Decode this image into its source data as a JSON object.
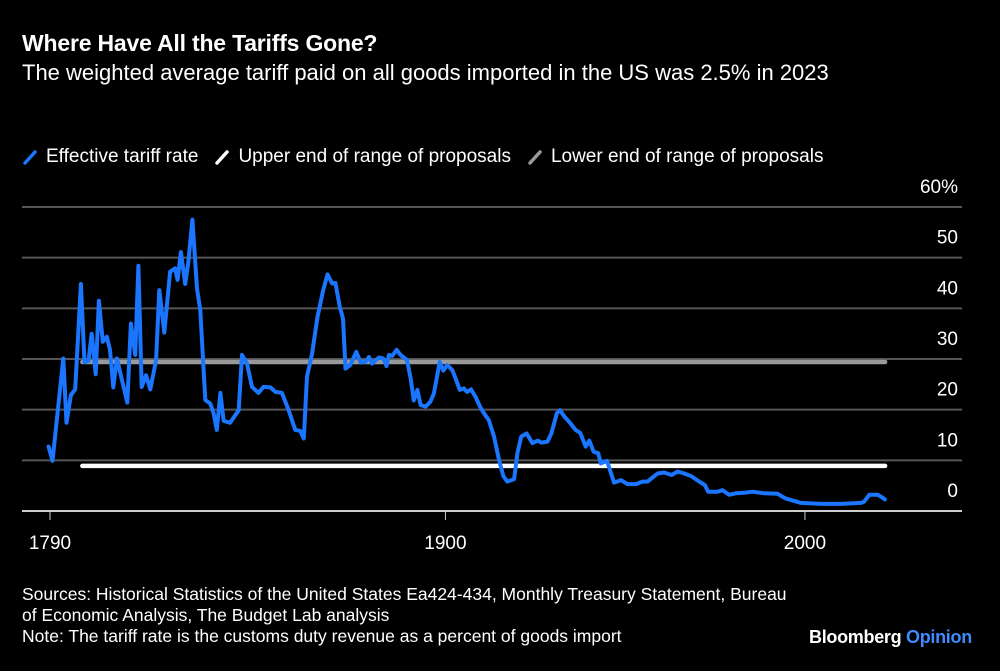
{
  "chart_data": {
    "type": "line",
    "title": "Where Have All the Tariffs Gone?",
    "subtitle": "The weighted average tariff paid on all goods imported in the US was 2.5% in 2023",
    "xlabel": "",
    "ylabel": "",
    "xlim": [
      1790,
      2024
    ],
    "ylim": [
      0,
      60
    ],
    "x_ticks": [
      1790,
      1900,
      2000
    ],
    "x_tick_labels": [
      "1790",
      "1900",
      "2000"
    ],
    "y_ticks": [
      0,
      10,
      20,
      30,
      40,
      50,
      60
    ],
    "y_tick_labels": [
      "0",
      "10",
      "20",
      "30",
      "40",
      "50",
      "60%"
    ],
    "grid": true,
    "legend_position": "top-left",
    "series": [
      {
        "name": "Effective tariff rate",
        "color": "#1a75ff",
        "x": [
          1789.6,
          1790.7,
          1793.7,
          1794.6,
          1795.8,
          1797,
          1798.6,
          1799.6,
          1800.7,
          1801.6,
          1802.7,
          1803.6,
          1804.7,
          1805.8,
          1806.7,
          1807.6,
          1808.6,
          1811.5,
          1812.5,
          1813.7,
          1814.6,
          1815.5,
          1816.7,
          1817.9,
          1819.5,
          1820.4,
          1821.8,
          1823.4,
          1824.8,
          1825.5,
          1826.4,
          1827.6,
          1828.5,
          1829.6,
          1830.9,
          1831.8,
          1833.2,
          1834.6,
          1835.5,
          1836.4,
          1837.4,
          1838.3,
          1840.1,
          1842.5,
          1843.4,
          1844.8,
          1846.2,
          1848,
          1849.4,
          1851.3,
          1852.7,
          1854.5,
          1856.4,
          1858.2,
          1859.6,
          1860.6,
          1861.5,
          1862.9,
          1864.4,
          1866,
          1867.2,
          1868.5,
          1869.4,
          1870.6,
          1871.5,
          1872.2,
          1873.5,
          1875.2,
          1876.4,
          1877.7,
          1878.7,
          1879.6,
          1881.5,
          1882.7,
          1883.6,
          1884.3,
          1885.2,
          1886.4,
          1887.5,
          1889.3,
          1890.3,
          1891.2,
          1892.2,
          1893.1,
          1894.5,
          1895.8,
          1896.8,
          1898.4,
          1899.4,
          1900.5,
          1901.9,
          1902.8,
          1904,
          1905.1,
          1906,
          1907.1,
          1908.4,
          1909.6,
          1910.7,
          1912.1,
          1913.5,
          1914.9,
          1916.1,
          1917.2,
          1919.1,
          1920,
          1921.1,
          1922.6,
          1924.2,
          1925.7,
          1926.7,
          1928.4,
          1929.5,
          1931,
          1931.9,
          1933,
          1934.4,
          1936.2,
          1937.5,
          1939,
          1940,
          1941.2,
          1942.5,
          1943.2,
          1944.9,
          1946.9,
          1948.8,
          1950.6,
          1953,
          1954.8,
          1956.2,
          1959,
          1960.8,
          1962.9,
          1964.6,
          1966.4,
          1968.3,
          1970.6,
          1972.2,
          1973.1,
          1975.7,
          1977.1,
          1978.9,
          1980.8,
          1983.1,
          1985.4,
          1988.7,
          1992.4,
          1994.5,
          1998.9,
          2004.5,
          2010,
          2015.6,
          2016.4,
          2017.9,
          2020.3,
          2021.2,
          2022.2
        ],
        "y": [
          12.7,
          9.9,
          30.1,
          17.4,
          22.9,
          24,
          44.8,
          29.4,
          29.6,
          35,
          27,
          41.5,
          33.4,
          34.4,
          31.8,
          24.4,
          30.1,
          21.4,
          37,
          30.8,
          48.4,
          24.5,
          26.8,
          24,
          29.8,
          43.6,
          35.2,
          47.2,
          47.9,
          45.6,
          51.1,
          44.8,
          49.2,
          57.5,
          43.9,
          39.6,
          21.9,
          21.2,
          19.3,
          16,
          23.3,
          17.8,
          17.4,
          19.9,
          30.8,
          29.1,
          24.5,
          23.3,
          24.5,
          24.4,
          23.5,
          23.3,
          19.9,
          16,
          15.8,
          14.3,
          26.5,
          31.1,
          38.3,
          43.6,
          46.7,
          44.9,
          45,
          40.3,
          38,
          28.1,
          28.8,
          31.4,
          29.3,
          29.4,
          30.4,
          29.1,
          30.3,
          30.1,
          28.6,
          30.8,
          30.6,
          31.8,
          30.8,
          29.8,
          26.2,
          21.8,
          23.9,
          20.9,
          20.6,
          21.6,
          23.2,
          29.4,
          27.7,
          28.8,
          27.8,
          26.2,
          23.9,
          24.2,
          23.5,
          24,
          22.5,
          20.6,
          19.3,
          17.9,
          14.7,
          10.1,
          6.9,
          5.8,
          6.3,
          11.4,
          14.7,
          15.3,
          13.4,
          13.9,
          13.5,
          13.7,
          15.4,
          19.3,
          19.9,
          18.7,
          17.6,
          16,
          15.4,
          12.7,
          13.9,
          11.7,
          11.4,
          9.4,
          9.9,
          5.6,
          6.1,
          5.3,
          5.3,
          5.8,
          5.8,
          7.4,
          7.6,
          7.1,
          7.8,
          7.4,
          6.9,
          5.8,
          5.1,
          3.8,
          3.8,
          4.1,
          3.2,
          3.5,
          3.6,
          3.8,
          3.5,
          3.4,
          2.5,
          1.6,
          1.4,
          1.4,
          1.6,
          1.8,
          3.2,
          3.2,
          2.8,
          2.3
        ]
      },
      {
        "name": "Upper end of range of proposals",
        "color": "#ffffff",
        "x": [
          1799,
          2022.3
        ],
        "y": [
          8.9,
          8.9
        ]
      },
      {
        "name": "Lower end of range of proposals",
        "color": "#999999",
        "x": [
          1799,
          2022.3
        ],
        "y": [
          29.4,
          29.4
        ]
      }
    ]
  },
  "footer": {
    "sources": "Sources: Historical Statistics of the United States Ea424-434, Monthly Treasury Statement, Bureau of Economic Analysis, The Budget Lab analysis",
    "note": "Note: The tariff rate is the customs duty revenue as a percent of goods import"
  },
  "logo": {
    "brand": "Bloomberg",
    "section": "Opinion"
  }
}
